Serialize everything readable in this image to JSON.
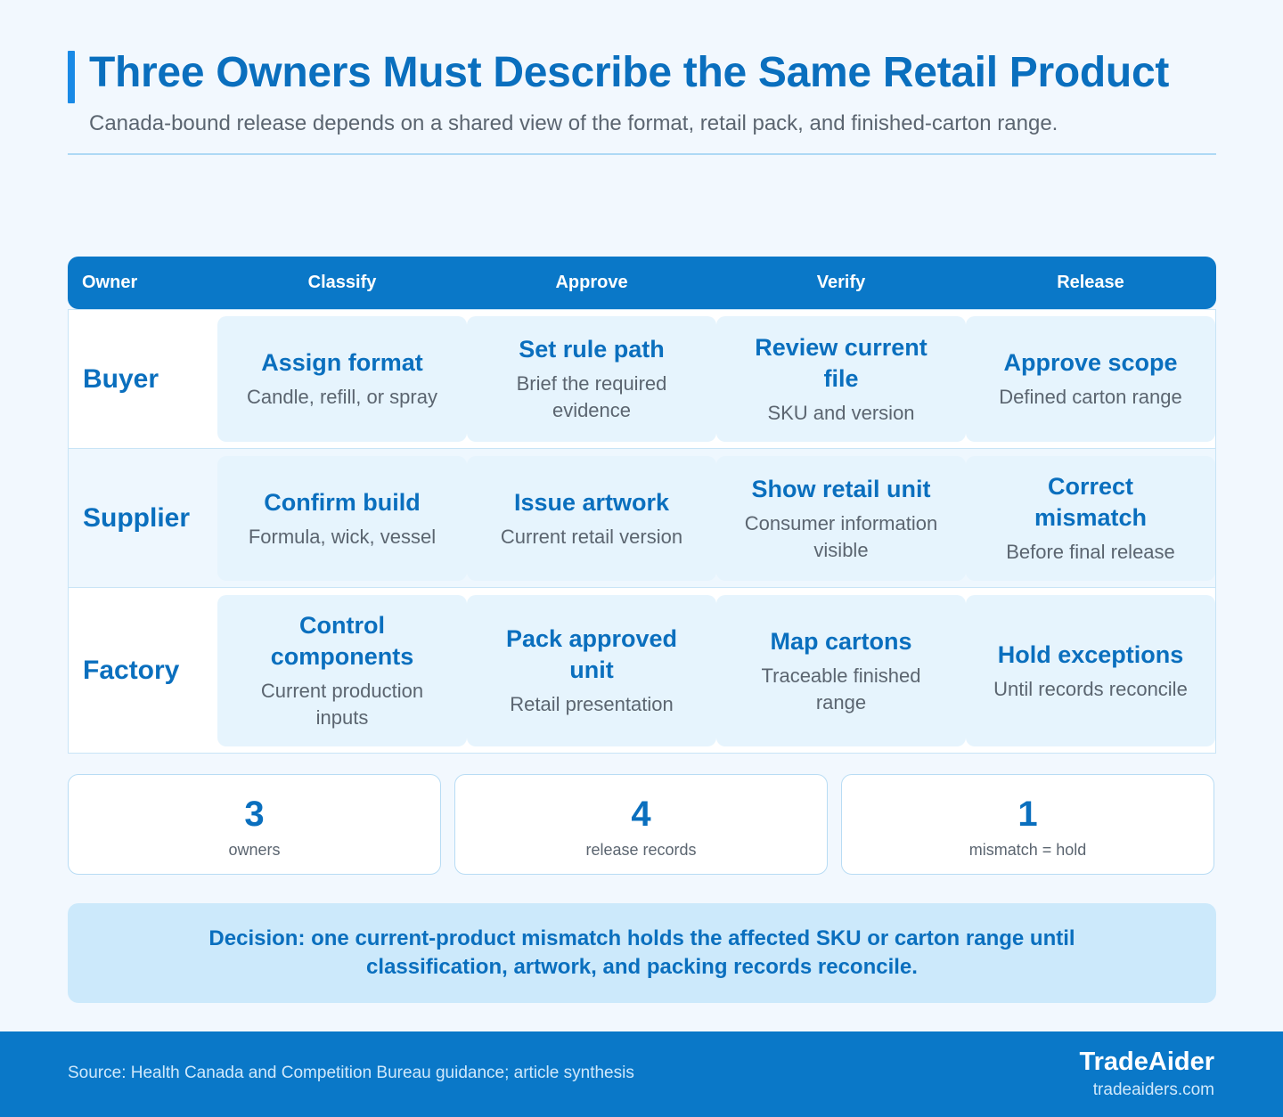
{
  "header": {
    "title": "Three Owners Must Describe the Same Retail Product",
    "subtitle": "Canada-bound release depends on a shared view of the format, retail pack, and finished-carton range."
  },
  "table": {
    "columns": [
      "Owner",
      "Classify",
      "Approve",
      "Verify",
      "Release"
    ],
    "rows": [
      {
        "owner": "Buyer",
        "cells": [
          {
            "title": "Assign format",
            "desc": "Candle, refill, or spray"
          },
          {
            "title": "Set rule path",
            "desc": "Brief the required evidence"
          },
          {
            "title": "Review current file",
            "desc": "SKU and version"
          },
          {
            "title": "Approve scope",
            "desc": "Defined carton range"
          }
        ]
      },
      {
        "owner": "Supplier",
        "cells": [
          {
            "title": "Confirm build",
            "desc": "Formula, wick, vessel"
          },
          {
            "title": "Issue artwork",
            "desc": "Current retail version"
          },
          {
            "title": "Show retail unit",
            "desc": "Consumer information visible"
          },
          {
            "title": "Correct mismatch",
            "desc": "Before final release"
          }
        ]
      },
      {
        "owner": "Factory",
        "cells": [
          {
            "title": "Control components",
            "desc": "Current production inputs"
          },
          {
            "title": "Pack approved unit",
            "desc": "Retail presentation"
          },
          {
            "title": "Map cartons",
            "desc": "Traceable finished range"
          },
          {
            "title": "Hold exceptions",
            "desc": "Until records reconcile"
          }
        ]
      }
    ]
  },
  "stats": [
    {
      "value": "3",
      "label": "owners"
    },
    {
      "value": "4",
      "label": "release records"
    },
    {
      "value": "1",
      "label": "mismatch = hold"
    }
  ],
  "decision": "Decision: one current-product mismatch holds the affected SKU or carton range until classification, artwork, and packing records reconcile.",
  "footer": {
    "source": "Source: Health Canada and Competition Bureau guidance; article synthesis",
    "brand": "TradeAider",
    "url": "tradeaiders.com"
  },
  "colors": {
    "accent": "#0a78c8",
    "title": "#0a6fbe",
    "background": "#f2f8fe",
    "cell": "#e6f4fd",
    "decision": "#cce9fb"
  }
}
